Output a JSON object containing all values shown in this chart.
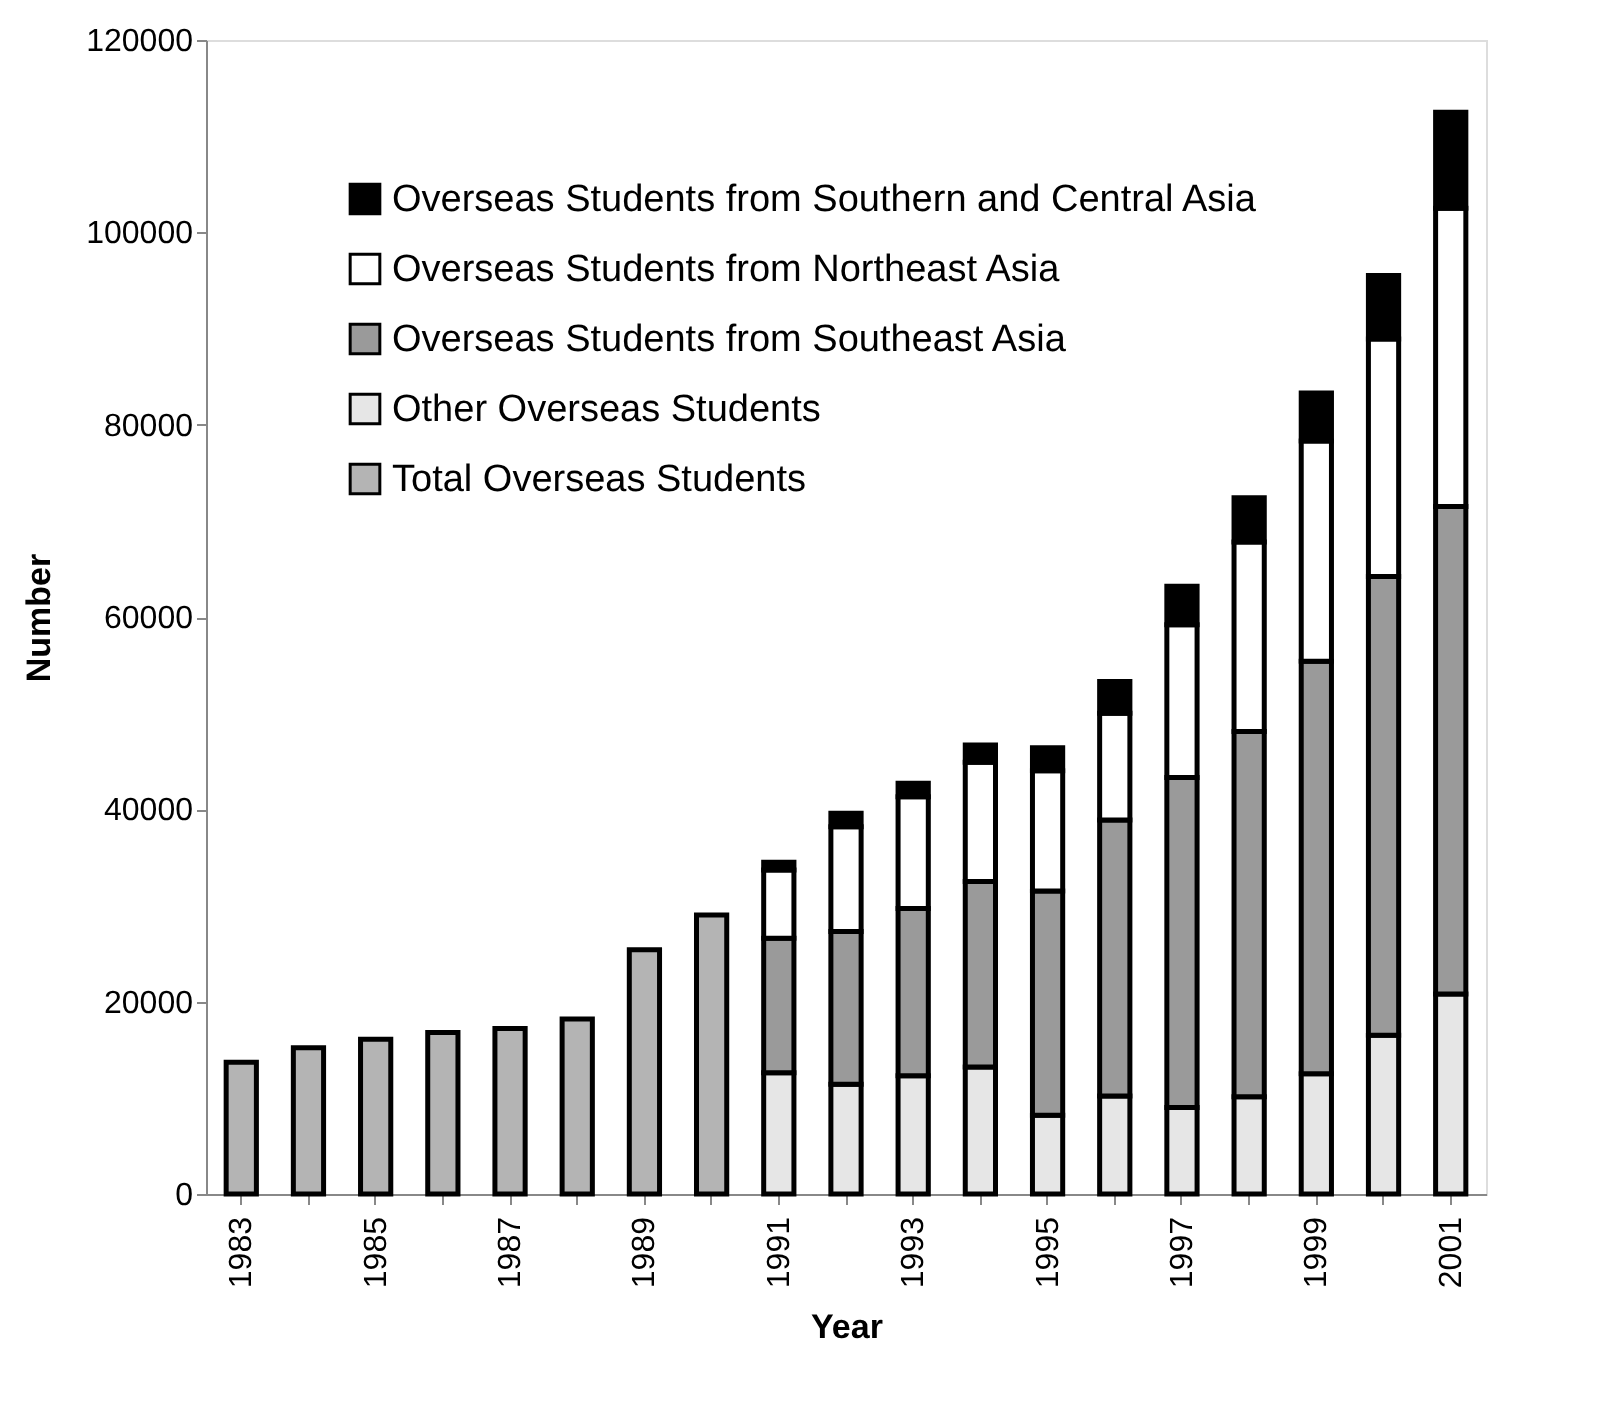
{
  "chart_data": {
    "type": "bar",
    "stacked": true,
    "xlabel": "Year",
    "ylabel": "Number",
    "categories": [
      "1983",
      null,
      "1985",
      null,
      "1987",
      null,
      "1989",
      null,
      "1991",
      null,
      "1993",
      null,
      "1995",
      null,
      "1997",
      null,
      "1999",
      null,
      "2001"
    ],
    "series": [
      {
        "name": "Total Overseas Students",
        "color": "#b4b4b4",
        "values": [
          13700,
          15200,
          16100,
          16800,
          17200,
          18200,
          25400,
          29000,
          null,
          null,
          null,
          null,
          null,
          null,
          null,
          null,
          null,
          null,
          null
        ]
      },
      {
        "name": "Other Overseas Students",
        "color": "#e6e6e6",
        "values": [
          null,
          null,
          null,
          null,
          null,
          null,
          null,
          null,
          12600,
          11400,
          12300,
          13200,
          8200,
          10200,
          9000,
          10100,
          12500,
          16500,
          20800
        ]
      },
      {
        "name": "Overseas Students from Southeast Asia",
        "color": "#9a9a9a",
        "values": [
          null,
          null,
          null,
          null,
          null,
          null,
          null,
          null,
          14000,
          15900,
          17400,
          19300,
          23300,
          28700,
          34300,
          38000,
          42900,
          47700,
          50700
        ]
      },
      {
        "name": "Overseas Students from Northeast Asia",
        "color": "#ffffff",
        "values": [
          null,
          null,
          null,
          null,
          null,
          null,
          null,
          null,
          7100,
          10900,
          11600,
          12400,
          12500,
          11100,
          15900,
          19700,
          22900,
          24700,
          31000
        ]
      },
      {
        "name": "Overseas Students from Southern and Central Asia",
        "color": "#000000",
        "values": [
          null,
          null,
          null,
          null,
          null,
          null,
          null,
          null,
          800,
          1400,
          1400,
          1800,
          2400,
          3300,
          4000,
          4600,
          5000,
          6600,
          10000
        ]
      }
    ],
    "ylim": [
      0,
      120000
    ],
    "yticks": [
      0,
      20000,
      40000,
      60000,
      80000,
      100000,
      120000
    ],
    "grid": false,
    "legend": "top left"
  }
}
